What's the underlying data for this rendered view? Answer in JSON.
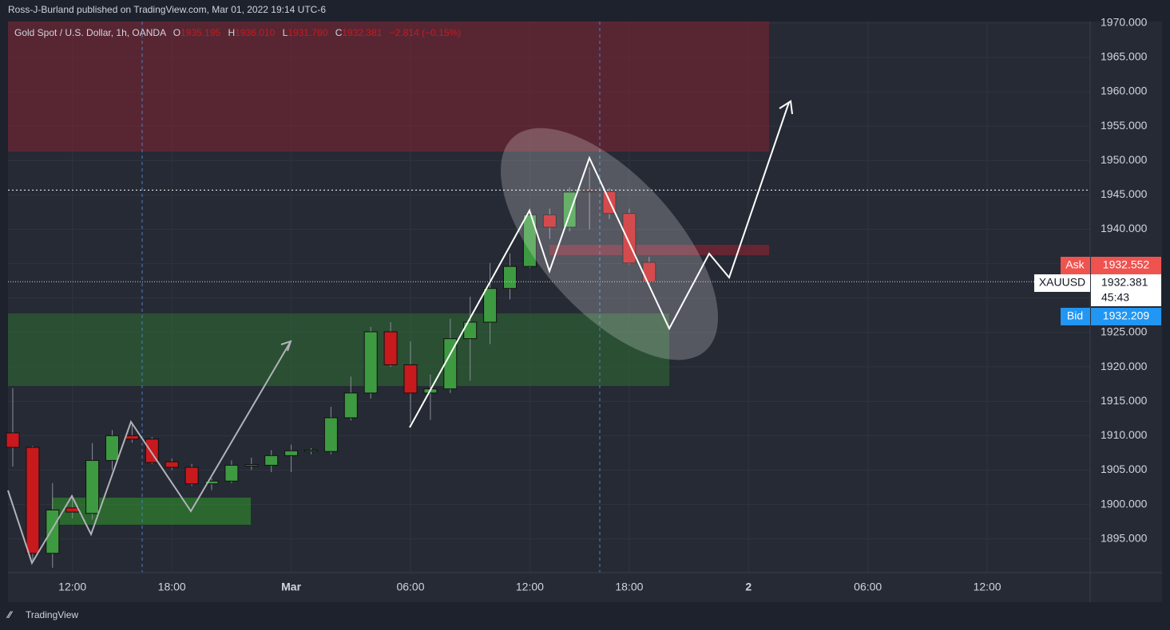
{
  "chart_data": {
    "type": "candlestick",
    "attribution": "Ross-J-Burland published on TradingView.com, Mar 01, 2022 19:14 UTC-6",
    "symbol_title": "Gold Spot / U.S. Dollar, 1h, OANDA",
    "ohlc_legend": [
      {
        "key": "O",
        "value": "1935.195"
      },
      {
        "key": "H",
        "value": "1936.010"
      },
      {
        "key": "L",
        "value": "1931.760"
      },
      {
        "key": "C",
        "value": "1932.381"
      }
    ],
    "change": "−2.814 (−0.15%)",
    "categories": [
      null,
      null,
      null,
      "12:00",
      null,
      null,
      null,
      null,
      "18:00",
      null,
      null,
      null,
      null,
      null,
      "Mar",
      null,
      null,
      null,
      null,
      null,
      "06:00",
      null,
      null,
      null,
      null,
      null,
      "12:00",
      null,
      null,
      null,
      null,
      "18:00",
      null,
      null,
      null,
      null,
      null,
      "2",
      null,
      null,
      null,
      null,
      null,
      "06:00",
      null,
      null,
      null,
      null,
      null,
      "12:00",
      null,
      null,
      null,
      null,
      null
    ],
    "open": [
      1910.4,
      1908.3,
      1892.9,
      1899.5,
      1898.7,
      1906.4,
      1910.0,
      1909.5,
      1906.2,
      1905.4,
      1903.0,
      1903.4,
      1905.6,
      1905.7,
      1907.1,
      1907.8,
      1907.7,
      1912.6,
      1916.2,
      1925.1,
      1920.3,
      1916.2,
      1916.8,
      1924.1,
      1926.5,
      1931.4,
      1934.6,
      1942.1,
      1940.3,
      1945.6,
      1945.5,
      1942.3,
      1935.195,
      null,
      null,
      null,
      null,
      null,
      null,
      null,
      null,
      null,
      null,
      null,
      null,
      null,
      null,
      null,
      null,
      null,
      null,
      null,
      null,
      null,
      null
    ],
    "high": [
      1916.9,
      1908.5,
      1903.1,
      1901.3,
      1908.9,
      1910.8,
      1911.6,
      1909.8,
      1906.7,
      1905.9,
      1903.8,
      1906.4,
      1906.8,
      1907.9,
      1908.7,
      1908.2,
      1914.2,
      1918.6,
      1925.8,
      1926.5,
      1923.7,
      1918.9,
      1927.0,
      1930.2,
      1935.1,
      1936.5,
      1943.0,
      1943.0,
      1946.1,
      1949.0,
      1946.0,
      1943.0,
      1936.01,
      null,
      null,
      null,
      null,
      null,
      null,
      null,
      null,
      null,
      null,
      null,
      null,
      null,
      null,
      null,
      null,
      null,
      null,
      null,
      null,
      null,
      null
    ],
    "low": [
      1905.5,
      1891.5,
      1890.8,
      1898.0,
      1897.8,
      1905.0,
      1909.0,
      1905.9,
      1905.0,
      1902.7,
      1902.1,
      1903.1,
      1905.0,
      1904.7,
      1904.7,
      1907.3,
      1907.3,
      1912.2,
      1915.4,
      1920.0,
      1911.9,
      1912.3,
      1916.2,
      1918.0,
      1923.3,
      1929.8,
      1934.4,
      1938.6,
      1939.7,
      1940.0,
      1941.5,
      1934.9,
      1931.76,
      null,
      null,
      null,
      null,
      null,
      null,
      null,
      null,
      null,
      null,
      null,
      null,
      null,
      null,
      null,
      null,
      null,
      null,
      null,
      null,
      null,
      null
    ],
    "close": [
      1908.3,
      1892.9,
      1899.2,
      1898.9,
      1906.4,
      1910.0,
      1909.5,
      1906.1,
      1905.4,
      1903.0,
      1903.4,
      1905.7,
      1905.8,
      1907.1,
      1907.8,
      1907.9,
      1912.6,
      1916.2,
      1925.1,
      1920.3,
      1916.2,
      1916.8,
      1924.1,
      1926.5,
      1931.4,
      1934.6,
      1942.1,
      1940.3,
      1945.4,
      1945.5,
      1942.3,
      1935.1,
      1932.381,
      null,
      null,
      null,
      null,
      null,
      null,
      null,
      null,
      null,
      null,
      null,
      null,
      null,
      null,
      null,
      null,
      null,
      null,
      null,
      null,
      null,
      null
    ],
    "up_color": "#3d9a41",
    "down_color": "#c8191d",
    "ylim": [
      1890.1,
      1970.2
    ],
    "yticks": [
      {
        "value": 1895,
        "label": "1895.000"
      },
      {
        "value": 1900,
        "label": "1900.000"
      },
      {
        "value": 1905,
        "label": "1905.000"
      },
      {
        "value": 1910,
        "label": "1910.000"
      },
      {
        "value": 1915,
        "label": "1915.000"
      },
      {
        "value": 1920,
        "label": "1920.000"
      },
      {
        "value": 1925,
        "label": "1925.000"
      },
      {
        "value": 1930,
        "label": "1930.000"
      },
      {
        "value": 1935,
        "label": "1935.000"
      },
      {
        "value": 1940,
        "label": "1940.000"
      },
      {
        "value": 1945,
        "label": "1945.000"
      },
      {
        "value": 1950,
        "label": "1950.000"
      },
      {
        "value": 1955,
        "label": "1955.000"
      },
      {
        "value": 1960,
        "label": "1960.000"
      },
      {
        "value": 1965,
        "label": "1965.000"
      },
      {
        "value": 1970,
        "label": "1970.000"
      }
    ],
    "grid": true,
    "level_line": 1945.7,
    "price_labels": {
      "ask_label": "Ask",
      "ask": "1932.552",
      "symbol": "XAUUSD",
      "last": "1932.381",
      "countdown": "45:43",
      "bid_label": "Bid",
      "bid": "1932.209"
    },
    "brand": "TradingView"
  }
}
